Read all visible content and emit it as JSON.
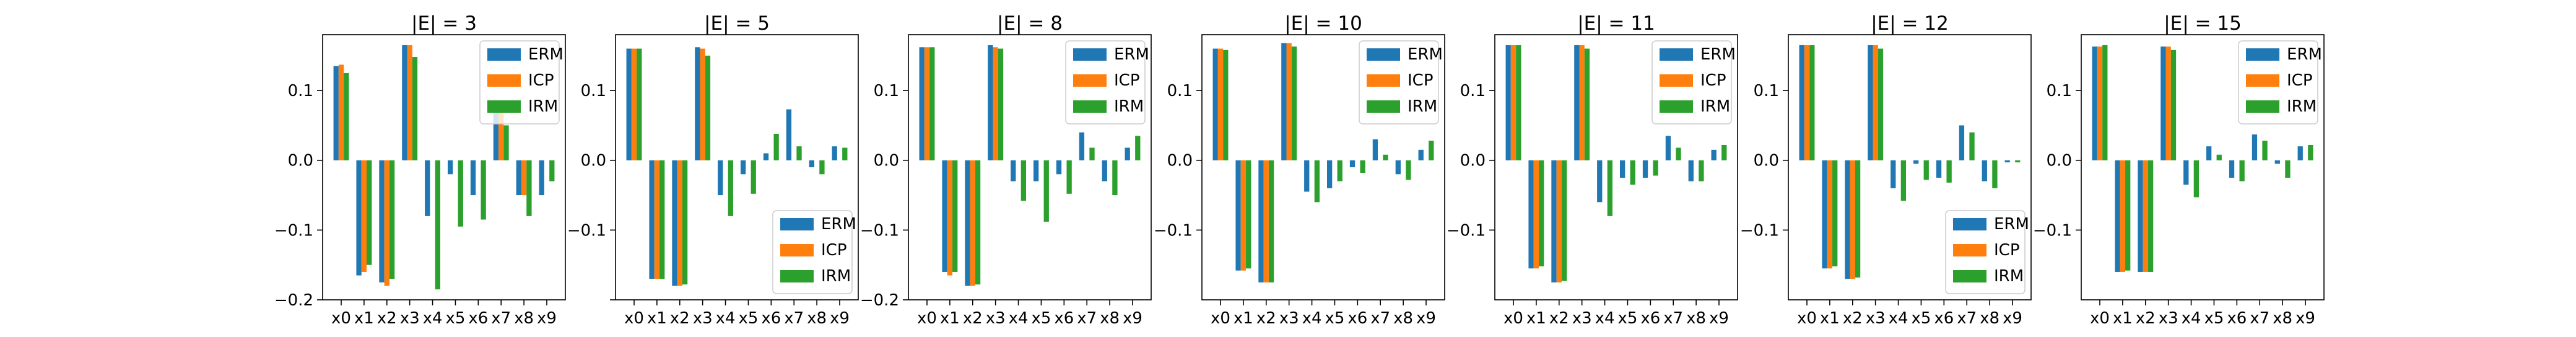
{
  "colors": {
    "ERM": "#1f77b4",
    "ICP": "#ff7f0e",
    "IRM": "#2ca02c"
  },
  "chart_data": [
    {
      "type": "bar",
      "title": "|E| = 3",
      "categories": [
        "x0",
        "x1",
        "x2",
        "x3",
        "x4",
        "x5",
        "x6",
        "x7",
        "x8",
        "x9"
      ],
      "series": [
        {
          "name": "ERM",
          "values": [
            0.135,
            -0.165,
            -0.175,
            0.165,
            -0.08,
            -0.02,
            -0.05,
            0.07,
            -0.05,
            -0.05
          ]
        },
        {
          "name": "ICP",
          "values": [
            0.137,
            -0.16,
            -0.18,
            0.165,
            0.0,
            0.0,
            0.0,
            0.07,
            -0.05,
            0.0
          ]
        },
        {
          "name": "IRM",
          "values": [
            0.125,
            -0.15,
            -0.17,
            0.148,
            -0.185,
            -0.095,
            -0.085,
            0.05,
            -0.08,
            -0.03
          ]
        }
      ],
      "ylim": [
        -0.2,
        0.18
      ],
      "yticks": [
        -0.2,
        -0.1,
        0.0,
        0.1
      ],
      "ytick_labels": [
        "−0.2",
        "−0.1",
        "0.0",
        "0.1"
      ],
      "legend": "top-right"
    },
    {
      "type": "bar",
      "title": "|E| = 5",
      "categories": [
        "x0",
        "x1",
        "x2",
        "x3",
        "x4",
        "x5",
        "x6",
        "x7",
        "x8",
        "x9"
      ],
      "series": [
        {
          "name": "ERM",
          "values": [
            0.16,
            -0.17,
            -0.18,
            0.162,
            -0.05,
            -0.02,
            0.01,
            0.073,
            -0.01,
            0.02
          ]
        },
        {
          "name": "ICP",
          "values": [
            0.16,
            -0.17,
            -0.18,
            0.16,
            0.0,
            0.0,
            0.0,
            0.0,
            0.0,
            0.0
          ]
        },
        {
          "name": "IRM",
          "values": [
            0.16,
            -0.17,
            -0.178,
            0.15,
            -0.08,
            -0.048,
            0.038,
            0.02,
            -0.02,
            0.018
          ]
        }
      ],
      "ylim": [
        -0.2,
        0.18
      ],
      "yticks": [
        -0.2,
        -0.1,
        0.0,
        0.1
      ],
      "ytick_labels": [
        "",
        "−0.1",
        "0.0",
        "0.1"
      ],
      "legend": "lower-right"
    },
    {
      "type": "bar",
      "title": "|E| = 8",
      "categories": [
        "x0",
        "x1",
        "x2",
        "x3",
        "x4",
        "x5",
        "x6",
        "x7",
        "x8",
        "x9"
      ],
      "series": [
        {
          "name": "ERM",
          "values": [
            0.162,
            -0.16,
            -0.18,
            0.165,
            -0.03,
            -0.03,
            -0.02,
            0.04,
            -0.03,
            0.018
          ]
        },
        {
          "name": "ICP",
          "values": [
            0.162,
            -0.165,
            -0.18,
            0.162,
            0.0,
            0.0,
            0.0,
            0.0,
            0.0,
            0.0
          ]
        },
        {
          "name": "IRM",
          "values": [
            0.162,
            -0.16,
            -0.178,
            0.16,
            -0.058,
            -0.088,
            -0.048,
            0.018,
            -0.05,
            0.035
          ]
        }
      ],
      "ylim": [
        -0.2,
        0.18
      ],
      "yticks": [
        -0.2,
        -0.1,
        0.0,
        0.1
      ],
      "ytick_labels": [
        "−0.2",
        "−0.1",
        "0.0",
        "0.1"
      ],
      "legend": "top-right"
    },
    {
      "type": "bar",
      "title": "|E| = 10",
      "categories": [
        "x0",
        "x1",
        "x2",
        "x3",
        "x4",
        "x5",
        "x6",
        "x7",
        "x8",
        "x9"
      ],
      "series": [
        {
          "name": "ERM",
          "values": [
            0.16,
            -0.158,
            -0.175,
            0.168,
            -0.045,
            -0.04,
            -0.01,
            0.03,
            -0.02,
            0.015
          ]
        },
        {
          "name": "ICP",
          "values": [
            0.16,
            -0.158,
            -0.175,
            0.168,
            0.0,
            0.0,
            0.0,
            0.0,
            0.0,
            0.0
          ]
        },
        {
          "name": "IRM",
          "values": [
            0.158,
            -0.155,
            -0.175,
            0.163,
            -0.06,
            -0.03,
            -0.018,
            0.008,
            -0.028,
            0.028
          ]
        }
      ],
      "ylim": [
        -0.2,
        0.18
      ],
      "yticks": [
        -0.1,
        0.0,
        0.1
      ],
      "ytick_labels": [
        "−0.1",
        "0.0",
        "0.1"
      ],
      "legend": "top-right"
    },
    {
      "type": "bar",
      "title": "|E| = 11",
      "categories": [
        "x0",
        "x1",
        "x2",
        "x3",
        "x4",
        "x5",
        "x6",
        "x7",
        "x8",
        "x9"
      ],
      "series": [
        {
          "name": "ERM",
          "values": [
            0.165,
            -0.155,
            -0.175,
            0.165,
            -0.06,
            -0.025,
            -0.025,
            0.035,
            -0.03,
            0.015
          ]
        },
        {
          "name": "ICP",
          "values": [
            0.165,
            -0.155,
            -0.175,
            0.165,
            0.0,
            0.0,
            0.0,
            0.0,
            0.0,
            0.0
          ]
        },
        {
          "name": "IRM",
          "values": [
            0.165,
            -0.152,
            -0.173,
            0.16,
            -0.08,
            -0.035,
            -0.022,
            0.018,
            -0.03,
            0.022
          ]
        }
      ],
      "ylim": [
        -0.2,
        0.18
      ],
      "yticks": [
        -0.1,
        0.0,
        0.1
      ],
      "ytick_labels": [
        "−0.1",
        "0.0",
        "0.1"
      ],
      "legend": "top-right"
    },
    {
      "type": "bar",
      "title": "|E| = 12",
      "categories": [
        "x0",
        "x1",
        "x2",
        "x3",
        "x4",
        "x5",
        "x6",
        "x7",
        "x8",
        "x9"
      ],
      "series": [
        {
          "name": "ERM",
          "values": [
            0.165,
            -0.155,
            -0.17,
            0.165,
            -0.04,
            -0.005,
            -0.025,
            0.05,
            -0.03,
            -0.003
          ]
        },
        {
          "name": "ICP",
          "values": [
            0.165,
            -0.155,
            -0.17,
            0.165,
            0.0,
            0.0,
            0.0,
            0.0,
            0.0,
            0.0
          ]
        },
        {
          "name": "IRM",
          "values": [
            0.165,
            -0.152,
            -0.168,
            0.16,
            -0.058,
            -0.028,
            -0.032,
            0.04,
            -0.04,
            -0.003
          ]
        }
      ],
      "ylim": [
        -0.2,
        0.18
      ],
      "yticks": [
        -0.1,
        0.0,
        0.1
      ],
      "ytick_labels": [
        "−0.1",
        "0.0",
        "0.1"
      ],
      "legend": "lower-right"
    },
    {
      "type": "bar",
      "title": "|E| = 15",
      "categories": [
        "x0",
        "x1",
        "x2",
        "x3",
        "x4",
        "x5",
        "x6",
        "x7",
        "x8",
        "x9"
      ],
      "series": [
        {
          "name": "ERM",
          "values": [
            0.163,
            -0.16,
            -0.16,
            0.163,
            -0.035,
            0.02,
            -0.025,
            0.037,
            -0.005,
            0.02
          ]
        },
        {
          "name": "ICP",
          "values": [
            0.163,
            -0.16,
            -0.16,
            0.163,
            0.0,
            0.0,
            0.0,
            0.0,
            0.0,
            0.0
          ]
        },
        {
          "name": "IRM",
          "values": [
            0.165,
            -0.158,
            -0.16,
            0.158,
            -0.053,
            0.008,
            -0.03,
            0.028,
            -0.025,
            0.022
          ]
        }
      ],
      "ylim": [
        -0.2,
        0.18
      ],
      "yticks": [
        -0.1,
        0.0,
        0.1
      ],
      "ytick_labels": [
        "−0.1",
        "0.0",
        "0.1"
      ],
      "legend": "top-right"
    }
  ]
}
